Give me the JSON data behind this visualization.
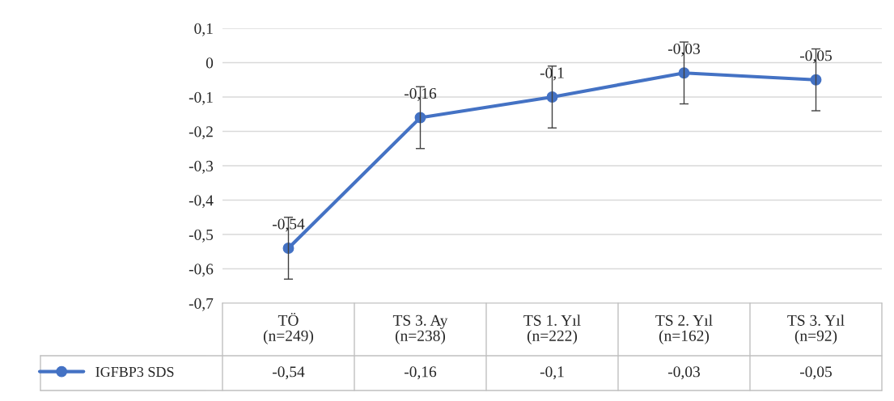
{
  "chart_data": {
    "type": "line",
    "categories": [
      "TÖ\n(n=249)",
      "TS 3. Ay\n(n=238)",
      "TS 1. Yıl\n(n=222)",
      "TS 2. Yıl\n(n=162)",
      "TS 3. Yıl\n(n=92)"
    ],
    "series": [
      {
        "name": "IGFBP3 SDS",
        "color": "#4472c4",
        "values": [
          -0.54,
          -0.16,
          -0.1,
          -0.03,
          -0.05
        ],
        "errors": [
          0.09,
          0.09,
          0.09,
          0.09,
          0.09
        ],
        "value_labels": [
          "-0,54",
          "-0,16",
          "-0,1",
          "-0,03",
          "-0,05"
        ]
      }
    ],
    "ylim": [
      -0.7,
      0.1
    ],
    "yticks": [
      {
        "value": -0.7,
        "label": "-0,7"
      },
      {
        "value": -0.6,
        "label": "-0,6"
      },
      {
        "value": -0.5,
        "label": "-0,5"
      },
      {
        "value": -0.4,
        "label": "-0,4"
      },
      {
        "value": -0.3,
        "label": "-0,3"
      },
      {
        "value": -0.2,
        "label": "-0,2"
      },
      {
        "value": -0.1,
        "label": "-0,1"
      },
      0,
      {
        "value": 0.1,
        "label": "0,1"
      }
    ],
    "grid": "y",
    "legend": "bottom left",
    "marker": "circle",
    "line_style": "solid"
  }
}
